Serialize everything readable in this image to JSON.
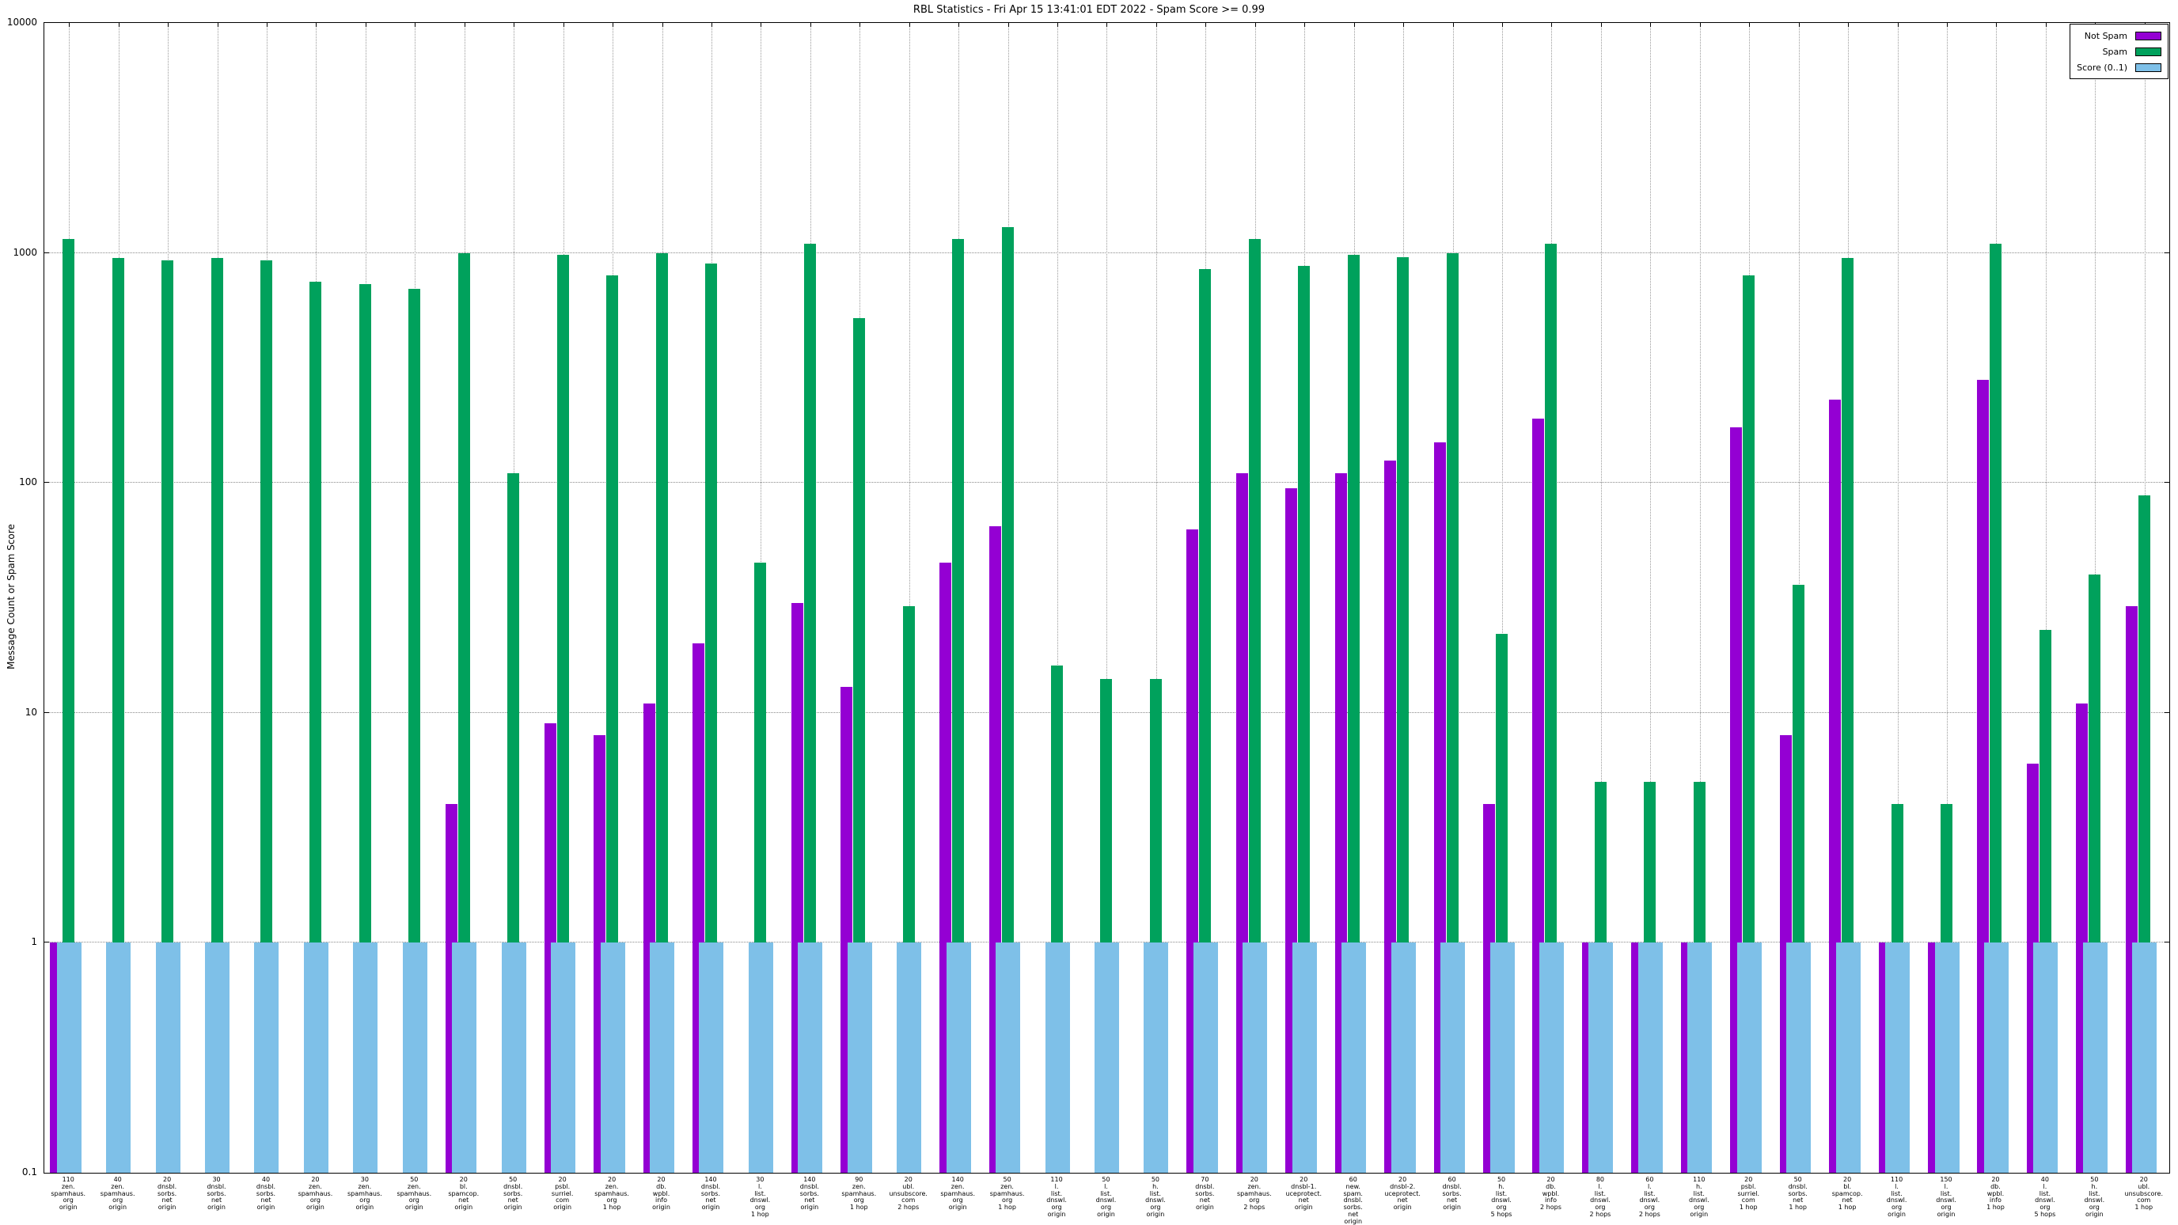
{
  "title": "RBL Statistics - Fri Apr 15 13:41:01 EDT 2022 - Spam Score >= 0.99",
  "y_axis_label": "Message Count or Spam Score",
  "colors": {
    "not_spam": "#9400D3",
    "spam": "#00A15C",
    "score": "#7EC0E8",
    "grid": "#8a8a8a"
  },
  "legend": [
    {
      "label": "Not Spam",
      "color": "#9400D3"
    },
    {
      "label": "Spam",
      "color": "#00A15C"
    },
    {
      "label": "Score (0..1)",
      "color": "#7EC0E8"
    }
  ],
  "y_ticks": [
    "10000",
    "1000",
    "100",
    "10",
    "1",
    "0.1"
  ],
  "chart_data": {
    "type": "bar",
    "yscale": "log",
    "ylim": [
      0.1,
      10000
    ],
    "grid": true,
    "legend_position": "top-right",
    "series_names": [
      "Not Spam",
      "Spam",
      "Score (0..1)"
    ],
    "groups": [
      {
        "label_lines": [
          "110",
          "zen.",
          "spamhaus.",
          "org",
          "origin"
        ],
        "not_spam": 1,
        "spam": 1150,
        "score": 1
      },
      {
        "label_lines": [
          "40",
          "zen.",
          "spamhaus.",
          "org",
          "origin"
        ],
        "not_spam": null,
        "spam": 950,
        "score": 1
      },
      {
        "label_lines": [
          "20",
          "dnsbl.",
          "sorbs.",
          "net",
          "origin"
        ],
        "not_spam": null,
        "spam": 930,
        "score": 1
      },
      {
        "label_lines": [
          "30",
          "dnsbl.",
          "sorbs.",
          "net",
          "origin"
        ],
        "not_spam": null,
        "spam": 950,
        "score": 1
      },
      {
        "label_lines": [
          "40",
          "dnsbl.",
          "sorbs.",
          "net",
          "origin"
        ],
        "not_spam": null,
        "spam": 930,
        "score": 1
      },
      {
        "label_lines": [
          "20",
          "zen.",
          "spamhaus.",
          "org",
          "origin"
        ],
        "not_spam": null,
        "spam": 750,
        "score": 1
      },
      {
        "label_lines": [
          "30",
          "zen.",
          "spamhaus.",
          "org",
          "origin"
        ],
        "not_spam": null,
        "spam": 730,
        "score": 1
      },
      {
        "label_lines": [
          "50",
          "zen.",
          "spamhaus.",
          "org",
          "origin"
        ],
        "not_spam": null,
        "spam": 700,
        "score": 1
      },
      {
        "label_lines": [
          "20",
          "bl.",
          "spamcop.",
          "net",
          "origin"
        ],
        "not_spam": 4,
        "spam": 1000,
        "score": 1
      },
      {
        "label_lines": [
          "50",
          "dnsbl.",
          "sorbs.",
          "net",
          "origin"
        ],
        "not_spam": null,
        "spam": 110,
        "score": 1
      },
      {
        "label_lines": [
          "20",
          "psbl.",
          "surriel.",
          "com",
          "origin"
        ],
        "not_spam": 9,
        "spam": 980,
        "score": 1
      },
      {
        "label_lines": [
          "20",
          "zen.",
          "spamhaus.",
          "org",
          "1 hop"
        ],
        "not_spam": 8,
        "spam": 800,
        "score": 1
      },
      {
        "label_lines": [
          "20",
          "db.",
          "wpbl.",
          "info",
          "origin"
        ],
        "not_spam": 11,
        "spam": 1000,
        "score": 1
      },
      {
        "label_lines": [
          "140",
          "dnsbl.",
          "sorbs.",
          "net",
          "origin"
        ],
        "not_spam": 20,
        "spam": 900,
        "score": 1
      },
      {
        "label_lines": [
          "30",
          "l.",
          "list.",
          "dnswl.",
          "org",
          "1 hop"
        ],
        "not_spam": null,
        "spam": 45,
        "score": 1
      },
      {
        "label_lines": [
          "140",
          "dnsbl.",
          "sorbs.",
          "net",
          "origin"
        ],
        "not_spam": 30,
        "spam": 1100,
        "score": 1
      },
      {
        "label_lines": [
          "90",
          "zen.",
          "spamhaus.",
          "org",
          "1 hop"
        ],
        "not_spam": 13,
        "spam": 520,
        "score": 1
      },
      {
        "label_lines": [
          "20",
          "ubl.",
          "unsubscore.",
          "com",
          "2 hops"
        ],
        "not_spam": null,
        "spam": 29,
        "score": 1
      },
      {
        "label_lines": [
          "140",
          "zen.",
          "spamhaus.",
          "org",
          "origin"
        ],
        "not_spam": 45,
        "spam": 1150,
        "score": 1
      },
      {
        "label_lines": [
          "50",
          "zen.",
          "spamhaus.",
          "org",
          "1 hop"
        ],
        "not_spam": 65,
        "spam": 1300,
        "score": 1
      },
      {
        "label_lines": [
          "110",
          "l.",
          "list.",
          "dnswl.",
          "org",
          "origin"
        ],
        "not_spam": null,
        "spam": 16,
        "score": 1
      },
      {
        "label_lines": [
          "50",
          "l.",
          "list.",
          "dnswl.",
          "org",
          "origin"
        ],
        "not_spam": null,
        "spam": 14,
        "score": 1
      },
      {
        "label_lines": [
          "50",
          "h.",
          "list.",
          "dnswl.",
          "org",
          "origin"
        ],
        "not_spam": null,
        "spam": 14,
        "score": 1
      },
      {
        "label_lines": [
          "70",
          "dnsbl.",
          "sorbs.",
          "net",
          "origin"
        ],
        "not_spam": 63,
        "spam": 850,
        "score": 1
      },
      {
        "label_lines": [
          "20",
          "zen.",
          "spamhaus.",
          "org",
          "2 hops"
        ],
        "not_spam": 110,
        "spam": 1150,
        "score": 1
      },
      {
        "label_lines": [
          "20",
          "dnsbl-1.",
          "uceprotect.",
          "net",
          "origin"
        ],
        "not_spam": 95,
        "spam": 880,
        "score": 1
      },
      {
        "label_lines": [
          "60",
          "new.",
          "spam.",
          "dnsbl.",
          "sorbs.",
          "net",
          "origin"
        ],
        "not_spam": 110,
        "spam": 980,
        "score": 1
      },
      {
        "label_lines": [
          "20",
          "dnsbl-2.",
          "uceprotect.",
          "net",
          "origin"
        ],
        "not_spam": 125,
        "spam": 960,
        "score": 1
      },
      {
        "label_lines": [
          "60",
          "dnsbl.",
          "sorbs.",
          "net",
          "origin"
        ],
        "not_spam": 150,
        "spam": 1000,
        "score": 1
      },
      {
        "label_lines": [
          "50",
          "h.",
          "list.",
          "dnswl.",
          "org",
          "5 hops"
        ],
        "not_spam": 4,
        "spam": 22,
        "score": 1
      },
      {
        "label_lines": [
          "20",
          "db.",
          "wpbl.",
          "info",
          "2 hops"
        ],
        "not_spam": 190,
        "spam": 1100,
        "score": 1
      },
      {
        "label_lines": [
          "80",
          "l.",
          "list.",
          "dnswl.",
          "org",
          "2 hops"
        ],
        "not_spam": 1,
        "spam": 5,
        "score": 1
      },
      {
        "label_lines": [
          "60",
          "l.",
          "list.",
          "dnswl.",
          "org",
          "2 hops"
        ],
        "not_spam": 1,
        "spam": 5,
        "score": 1
      },
      {
        "label_lines": [
          "110",
          "h.",
          "list.",
          "dnswl.",
          "org",
          "origin"
        ],
        "not_spam": 1,
        "spam": 5,
        "score": 1
      },
      {
        "label_lines": [
          "20",
          "psbl.",
          "surriel.",
          "com",
          "1 hop"
        ],
        "not_spam": 175,
        "spam": 800,
        "score": 1
      },
      {
        "label_lines": [
          "50",
          "dnsbl.",
          "sorbs.",
          "net",
          "1 hop"
        ],
        "not_spam": 8,
        "spam": 36,
        "score": 1
      },
      {
        "label_lines": [
          "20",
          "bl.",
          "spamcop.",
          "net",
          "1 hop"
        ],
        "not_spam": 230,
        "spam": 950,
        "score": 1
      },
      {
        "label_lines": [
          "110",
          "l.",
          "list.",
          "dnswl.",
          "org",
          "origin"
        ],
        "not_spam": 1,
        "spam": 4,
        "score": 1
      },
      {
        "label_lines": [
          "150",
          "l.",
          "list.",
          "dnswl.",
          "org",
          "origin"
        ],
        "not_spam": 1,
        "spam": 4,
        "score": 1
      },
      {
        "label_lines": [
          "20",
          "db.",
          "wpbl.",
          "info",
          "1 hop"
        ],
        "not_spam": 280,
        "spam": 1100,
        "score": 1
      },
      {
        "label_lines": [
          "40",
          "l.",
          "list.",
          "dnswl.",
          "org",
          "5 hops"
        ],
        "not_spam": 6,
        "spam": 23,
        "score": 1
      },
      {
        "label_lines": [
          "50",
          "h.",
          "list.",
          "dnswl.",
          "org",
          "origin"
        ],
        "not_spam": 11,
        "spam": 40,
        "score": 1
      },
      {
        "label_lines": [
          "20",
          "ubl.",
          "unsubscore.",
          "com",
          "1 hop"
        ],
        "not_spam": 29,
        "spam": 88,
        "score": 1
      }
    ]
  }
}
